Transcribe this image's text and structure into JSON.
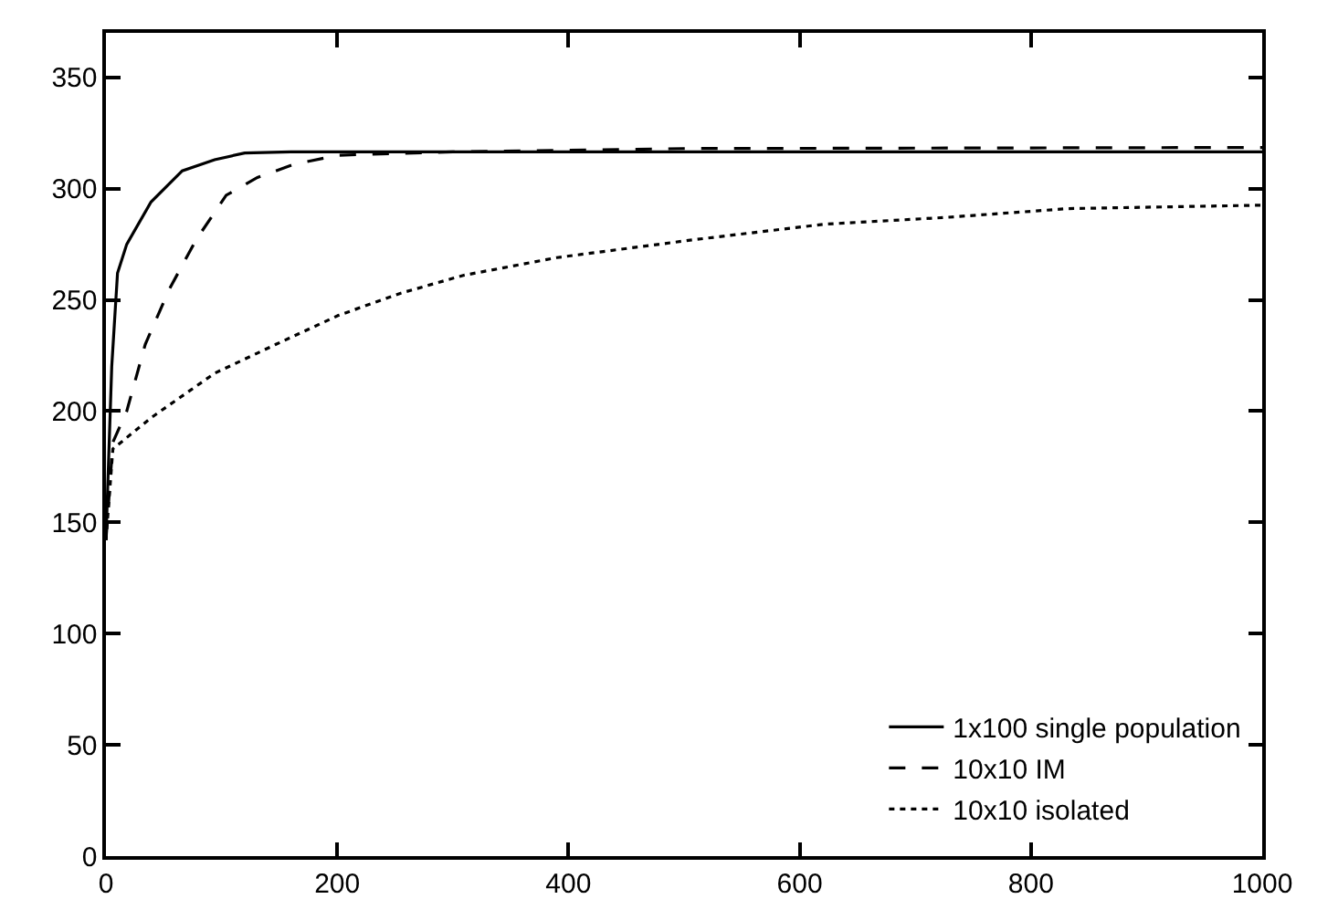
{
  "chart_data": {
    "type": "line",
    "xlim": [
      0,
      1000
    ],
    "ylim": [
      0,
      370
    ],
    "xticks": [
      0,
      200,
      400,
      600,
      800,
      1000
    ],
    "yticks": [
      0,
      50,
      100,
      150,
      200,
      250,
      300,
      350
    ],
    "grid": false,
    "legend": "bottom right",
    "marker": "none",
    "series": [
      {
        "name": "1x100 single population",
        "color": "#000000",
        "line_style": "solid",
        "x": [
          0,
          5,
          10,
          18,
          39,
          66,
          94,
          120,
          160,
          250,
          500,
          1000
        ],
        "values": [
          142,
          220,
          262,
          275,
          294,
          308,
          313,
          316,
          316.5,
          316.5,
          316.5,
          316.5
        ]
      },
      {
        "name": "10x10 IM",
        "color": "#000000",
        "line_style": "dashed",
        "x": [
          0,
          6,
          18,
          34,
          55,
          78,
          104,
          131,
          163,
          201,
          300,
          500,
          1000
        ],
        "values": [
          142,
          186,
          200,
          230,
          255,
          277,
          297,
          305,
          311,
          315,
          316.5,
          318,
          318.5
        ]
      },
      {
        "name": "10x10 isolated",
        "color": "#000000",
        "line_style": "dotted",
        "x": [
          0,
          6,
          39,
          94,
          147,
          201,
          255,
          309,
          390,
          508,
          621,
          725,
          832,
          994,
          1000
        ],
        "values": [
          142,
          183,
          197,
          217,
          230,
          243,
          253,
          261,
          269,
          277,
          284,
          287,
          291,
          292.5,
          292.5
        ]
      }
    ]
  }
}
